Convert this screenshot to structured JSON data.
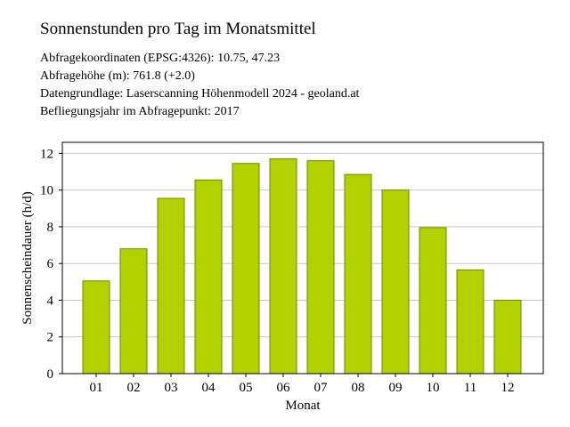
{
  "title": "Sonnenstunden pro Tag im Monatsmittel",
  "info": {
    "coordinates": "Abfragekoordinaten (EPSG:4326): 10.75, 47.23",
    "height": "Abfragehöhe (m): 761.8 (+2.0)",
    "source": "Datengrundlage: Laserscanning Höhenmodell 2024 - geoland.at",
    "flight_year": "Befliegungsjahr im Abfragepunkt: 2017"
  },
  "colors": {
    "bar": "#b2d100",
    "bar_edge": "#6f8a00",
    "grid": "#c8c8c8"
  },
  "chart_data": {
    "type": "bar",
    "categories": [
      "01",
      "02",
      "03",
      "04",
      "05",
      "06",
      "07",
      "08",
      "09",
      "10",
      "11",
      "12"
    ],
    "values": [
      5.05,
      6.8,
      9.55,
      10.55,
      11.45,
      11.7,
      11.6,
      10.85,
      10.0,
      7.95,
      5.65,
      4.0
    ],
    "xlabel": "Monat",
    "ylabel": "Sonnenscheindauer (h/d)",
    "ylim": [
      0,
      12.6
    ],
    "yticks": [
      0,
      2,
      4,
      6,
      8,
      10,
      12
    ],
    "grid": true
  }
}
